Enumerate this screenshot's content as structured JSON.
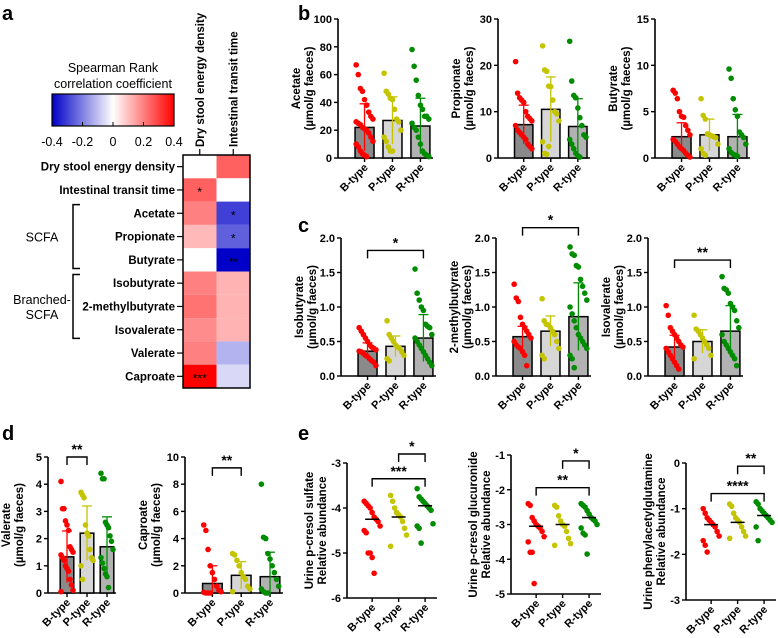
{
  "panel_letters": [
    "a",
    "b",
    "c",
    "d",
    "e"
  ],
  "groups": [
    "B-type",
    "P-type",
    "R-type"
  ],
  "colors": {
    "B-type": "#ff0000",
    "P-type": "#c4c400",
    "R-type": "#008c00",
    "bar_B": "#8a8a8a",
    "bar_P": "#d6d6d6",
    "bar_R": "#b2b2b2",
    "neg": "#0000c8",
    "pos": "#ff0000"
  },
  "chart_data": [
    {
      "type": "heatmap",
      "panel": "a",
      "title": "Spearman  Rank",
      "subtitle": "correlation coefficient",
      "colorbar_ticks": [
        "-0.4",
        "-0.2",
        "0",
        "0.2",
        "0.4"
      ],
      "range": [
        -0.4,
        0.4
      ],
      "columns": [
        "Dry stool energy density",
        "Intestinal transit time"
      ],
      "rows": [
        "Dry stool energy density",
        "Intestinal transit time",
        "Acetate",
        "Propionate",
        "Butyrate",
        "Isobutyrate",
        "2-methylbutyrate",
        "Isovalerate",
        "Valerate",
        "Caproate"
      ],
      "row_groups": [
        {
          "label": [
            "SCFA"
          ],
          "rows": [
            2,
            4
          ]
        },
        {
          "label": [
            "Branched-",
            "SCFA"
          ],
          "rows": [
            5,
            7
          ]
        }
      ],
      "values": [
        [
          0,
          0.25
        ],
        [
          0.25,
          0
        ],
        [
          0.2,
          -0.3
        ],
        [
          0.11,
          -0.25
        ],
        [
          0.0,
          -0.4
        ],
        [
          0.2,
          0.12
        ],
        [
          0.22,
          0.12
        ],
        [
          0.18,
          0.12
        ],
        [
          0.2,
          -0.12
        ],
        [
          0.4,
          -0.06
        ]
      ],
      "stars": [
        [
          "",
          ""
        ],
        [
          "*",
          ""
        ],
        [
          "",
          "*"
        ],
        [
          "",
          "*"
        ],
        [
          "",
          "**"
        ],
        [
          "",
          ""
        ],
        [
          "",
          ""
        ],
        [
          "",
          ""
        ],
        [
          "",
          ""
        ],
        [
          "***",
          ""
        ]
      ]
    },
    {
      "type": "bar",
      "panel": "b",
      "ylabel": [
        "Acetate",
        "(µmol/g faeces)"
      ],
      "ylim": [
        0,
        100
      ],
      "yticks": [
        "0",
        "20",
        "40",
        "60",
        "80",
        "100"
      ],
      "means": [
        22,
        27,
        23
      ],
      "sd": [
        17,
        17,
        20
      ],
      "points": [
        [
          67,
          60,
          50,
          48,
          42,
          38,
          33,
          30,
          28,
          26,
          25,
          24,
          22,
          21,
          20,
          18,
          15,
          12,
          10,
          8,
          5,
          3,
          2,
          1
        ],
        [
          61,
          48,
          46,
          43,
          42,
          35,
          28,
          26,
          20,
          15,
          12,
          8,
          5,
          5
        ],
        [
          78,
          66,
          56,
          45,
          38,
          35,
          30,
          30,
          28,
          25,
          22,
          20,
          15,
          10,
          5,
          3,
          2,
          1
        ]
      ],
      "sig": []
    },
    {
      "type": "bar",
      "panel": "b",
      "ylabel": [
        "Propionate",
        "(µmol/g faeces)"
      ],
      "ylim": [
        0,
        30
      ],
      "yticks": [
        "0",
        "10",
        "20",
        "30"
      ],
      "means": [
        7.2,
        10.5,
        6.8
      ],
      "sd": [
        4.2,
        7,
        6
      ],
      "points": [
        [
          20.8,
          14,
          13,
          12.5,
          12,
          10,
          9,
          8.5,
          8,
          7,
          6,
          5.5,
          5,
          4.5,
          4,
          3,
          2.5,
          2
        ],
        [
          24.2,
          19,
          18.7,
          15.5,
          15.4,
          12.5,
          10,
          9.5,
          8,
          3.5,
          1,
          0.8,
          2.5
        ],
        [
          25.2,
          16.6,
          13.5,
          13,
          10.8,
          8.7,
          7,
          5,
          4.5,
          4,
          3,
          2,
          1,
          0.5,
          0.2
        ]
      ],
      "sig": []
    },
    {
      "type": "bar",
      "panel": "b",
      "ylabel": [
        "Butyrate",
        "(µmol/g faeces)"
      ],
      "ylim": [
        0,
        15
      ],
      "yticks": [
        "0",
        "5",
        "10",
        "15"
      ],
      "means": [
        2.3,
        2.5,
        2.3
      ],
      "sd": [
        1.5,
        1.7,
        2.4
      ],
      "points": [
        [
          7.3,
          7,
          6.4,
          5,
          4.5,
          4.4,
          3.5,
          3,
          2.5,
          2,
          1.8,
          1.5,
          1.2,
          1,
          0.8,
          0.5,
          0.3,
          0.1
        ],
        [
          6.4,
          4.6,
          4.2,
          2.6,
          2.5,
          2.4,
          2.3,
          2.2,
          1.5,
          1,
          0.5,
          0.3
        ],
        [
          9.6,
          8.6,
          6.4,
          5.2,
          4.5,
          2.8,
          2.5,
          2.2,
          1.5,
          1,
          0.6,
          0.4,
          0.3,
          0.2
        ]
      ],
      "sig": []
    },
    {
      "type": "bar",
      "panel": "c",
      "ylabel": [
        "Isobutyrate",
        "(µmol/g faeces)"
      ],
      "ylim": [
        0,
        2
      ],
      "yticks": [
        "0.0",
        "0.5",
        "1.0",
        "1.5",
        "2.0"
      ],
      "means": [
        0.36,
        0.43,
        0.55
      ],
      "sd": [
        0.12,
        0.15,
        0.34
      ],
      "points": [
        [
          0.7,
          0.65,
          0.6,
          0.55,
          0.5,
          0.45,
          0.42,
          0.4,
          0.38,
          0.36,
          0.35,
          0.33,
          0.3,
          0.28,
          0.25,
          0.22,
          0.2,
          0.15
        ],
        [
          0.8,
          0.6,
          0.55,
          0.5,
          0.45,
          0.42,
          0.4,
          0.35,
          0.3,
          0.25,
          0.22
        ],
        [
          1.55,
          1.2,
          1.1,
          1.0,
          0.95,
          0.75,
          0.72,
          0.7,
          0.6,
          0.55,
          0.5,
          0.45,
          0.4,
          0.35,
          0.3,
          0.25,
          0.2,
          0.15
        ]
      ],
      "sig": [
        {
          "from": 0,
          "to": 2,
          "y": 1.82,
          "label": "*"
        }
      ]
    },
    {
      "type": "bar",
      "panel": "c",
      "ylabel": [
        "2-methylbutyrate",
        "(µmol/g faeces)"
      ],
      "ylim": [
        0,
        2
      ],
      "yticks": [
        "0.0",
        "0.5",
        "1.0",
        "1.5",
        "2.0"
      ],
      "means": [
        0.57,
        0.65,
        0.86
      ],
      "sd": [
        0.15,
        0.22,
        0.49
      ],
      "points": [
        [
          1.33,
          1.13,
          1.08,
          0.85,
          0.75,
          0.7,
          0.65,
          0.6,
          0.55,
          0.5,
          0.45,
          0.42,
          0.4,
          0.35,
          0.3,
          0.15
        ],
        [
          1.12,
          0.8,
          0.75,
          0.74,
          0.7,
          0.65,
          0.6,
          0.5,
          0.4,
          0.3,
          0.25
        ],
        [
          1.87,
          1.77,
          1.75,
          1.6,
          1.58,
          1.4,
          1.3,
          1.2,
          1.1,
          1.0,
          0.9,
          0.8,
          0.7,
          0.6,
          0.55,
          0.5,
          0.45,
          0.4,
          0.3,
          0.25,
          0.12
        ]
      ],
      "sig": [
        {
          "from": 0,
          "to": 2,
          "y": 2.15,
          "label": "*"
        }
      ]
    },
    {
      "type": "bar",
      "panel": "c",
      "ylabel": [
        "Isovalerate",
        "(µmol/g faeces)"
      ],
      "ylim": [
        0,
        2
      ],
      "yticks": [
        "0.0",
        "0.5",
        "1.0",
        "1.5",
        "2.0"
      ],
      "means": [
        0.42,
        0.5,
        0.65
      ],
      "sd": [
        0.17,
        0.17,
        0.37
      ],
      "points": [
        [
          1.02,
          0.88,
          0.7,
          0.65,
          0.6,
          0.55,
          0.5,
          0.45,
          0.42,
          0.4,
          0.35,
          0.3,
          0.25,
          0.2,
          0.15,
          0.1
        ],
        [
          0.88,
          0.68,
          0.65,
          0.6,
          0.55,
          0.5,
          0.45,
          0.4,
          0.3,
          0.25
        ],
        [
          1.44,
          1.27,
          1.25,
          1.2,
          1.05,
          1.0,
          0.95,
          0.8,
          0.7,
          0.6,
          0.5,
          0.45,
          0.4,
          0.35,
          0.3,
          0.25,
          0.15
        ]
      ],
      "sig": [
        {
          "from": 0,
          "to": 2,
          "y": 1.68,
          "label": "**"
        }
      ]
    },
    {
      "type": "bar",
      "panel": "d",
      "ylabel": [
        "Valerate",
        "(µmol/g faeces)"
      ],
      "ylim": [
        0,
        5
      ],
      "yticks": [
        "0",
        "1",
        "2",
        "3",
        "4",
        "5"
      ],
      "means": [
        1.33,
        2.2,
        1.7
      ],
      "sd": [
        0.95,
        1.0,
        1.1
      ],
      "points": [
        [
          4.1,
          3.1,
          3.1,
          2.65,
          2.5,
          2.3,
          1.7,
          1.6,
          1.5,
          1.4,
          1.3,
          1.2,
          1.0,
          0.9,
          0.8,
          0.5,
          0.3,
          0.1,
          0.05
        ],
        [
          3.7,
          3.6,
          3.5,
          2.5,
          2.2,
          2.1,
          1.6,
          1.3,
          1.2,
          1.0,
          0.5
        ],
        [
          4.4,
          4.2,
          4.2,
          2.6,
          2.5,
          2.4,
          2.1,
          1.9,
          1.6,
          1.3,
          1.1,
          0.9,
          0.7,
          0.6,
          0.2
        ]
      ],
      "sig": [
        {
          "from": 0,
          "to": 1,
          "y": 5.0,
          "label": "**"
        }
      ]
    },
    {
      "type": "bar",
      "panel": "d",
      "ylabel": [
        "Caproate",
        "(µmol/g faeces)"
      ],
      "ylim": [
        0,
        10
      ],
      "yticks": [
        "0",
        "2",
        "4",
        "6",
        "8",
        "10"
      ],
      "means": [
        0.7,
        1.3,
        1.2
      ],
      "sd": [
        1.3,
        1.0,
        1.8
      ],
      "points": [
        [
          5,
          4.6,
          3.2,
          2.0,
          1.5,
          1.0,
          0.5,
          0.2,
          0.1,
          0.05,
          0,
          0,
          0
        ],
        [
          2.9,
          2.8,
          2.4,
          2.0,
          1.5,
          1.2,
          1.0,
          0.5,
          0.3,
          0.1
        ],
        [
          8,
          4.1,
          4.0,
          2.9,
          2.5,
          2.0,
          1.5,
          1.0,
          0.5,
          0.3,
          0.1,
          0,
          0
        ]
      ],
      "sig": [
        {
          "from": 0,
          "to": 1,
          "y": 9.2,
          "label": "**"
        }
      ]
    },
    {
      "type": "scatter",
      "panel": "e",
      "ylabel": [
        "Urine p-cresol sulfate",
        "Relative abundance"
      ],
      "ylim": [
        -6,
        -3
      ],
      "yticks": [
        "-6",
        "-5",
        "-4",
        "-3"
      ],
      "medians": [
        -4.25,
        -4.2,
        -3.95
      ],
      "points": [
        [
          -3.85,
          -3.9,
          -3.95,
          -4.0,
          -4.1,
          -4.2,
          -4.25,
          -4.3,
          -4.4,
          -4.5,
          -4.55,
          -5.0,
          -5.0,
          -5.1,
          -5.45
        ],
        [
          -3.72,
          -3.85,
          -4.0,
          -4.1,
          -4.15,
          -4.2,
          -4.3,
          -4.45,
          -4.6,
          -4.85
        ],
        [
          -3.57,
          -3.75,
          -3.8,
          -3.85,
          -3.9,
          -3.95,
          -4.0,
          -4.05,
          -4.35,
          -4.4,
          -4.45,
          -4.78
        ]
      ],
      "sig": [
        {
          "from": 1,
          "to": 2,
          "y": -2.8,
          "label": "*"
        },
        {
          "from": 0,
          "to": 2,
          "y": -3.35,
          "label": "***"
        }
      ]
    },
    {
      "type": "scatter",
      "panel": "e",
      "ylabel": [
        "Urine p-cresol glucuronide",
        "Relative abundance"
      ],
      "ylim": [
        -5,
        -1
      ],
      "yticks": [
        "-5",
        "-4",
        "-3",
        "-2",
        "-1"
      ],
      "medians": [
        -3.05,
        -3.0,
        -2.8
      ],
      "points": [
        [
          -2.4,
          -2.45,
          -2.8,
          -2.9,
          -3.0,
          -3.05,
          -3.1,
          -3.2,
          -3.35,
          -3.5,
          -3.8,
          -3.8,
          -4.7
        ],
        [
          -2.45,
          -2.5,
          -2.75,
          -2.9,
          -3.0,
          -3.05,
          -3.2,
          -3.4,
          -3.55,
          -3.6
        ],
        [
          -2.4,
          -2.45,
          -2.5,
          -2.6,
          -2.7,
          -2.8,
          -2.85,
          -2.9,
          -3.0,
          -3.1,
          -3.25,
          -3.3,
          -3.85
        ]
      ],
      "sig": [
        {
          "from": 1,
          "to": 2,
          "y": -1.17,
          "label": "*"
        },
        {
          "from": 0,
          "to": 2,
          "y": -1.94,
          "label": "**"
        }
      ]
    },
    {
      "type": "scatter",
      "panel": "e",
      "ylabel": [
        "Urine phenylacetylglutamine",
        "Relative abundance"
      ],
      "ylim": [
        -3,
        0
      ],
      "yticks": [
        "-3",
        "-2",
        "-1",
        "0"
      ],
      "medians": [
        -1.35,
        -1.3,
        -1.15
      ],
      "points": [
        [
          -1.0,
          -1.1,
          -1.2,
          -1.25,
          -1.3,
          -1.35,
          -1.4,
          -1.5,
          -1.6,
          -1.7,
          -1.8,
          -1.95
        ],
        [
          -0.9,
          -0.95,
          -1.1,
          -1.2,
          -1.25,
          -1.3,
          -1.4,
          -1.5,
          -1.6,
          -1.65
        ],
        [
          -0.85,
          -0.9,
          -1.0,
          -1.05,
          -1.1,
          -1.15,
          -1.2,
          -1.25,
          -1.3,
          -1.4,
          -1.7
        ]
      ],
      "sig": [
        {
          "from": 1,
          "to": 2,
          "y": -0.07,
          "label": "**"
        },
        {
          "from": 0,
          "to": 2,
          "y": -0.67,
          "label": "****"
        }
      ]
    }
  ]
}
